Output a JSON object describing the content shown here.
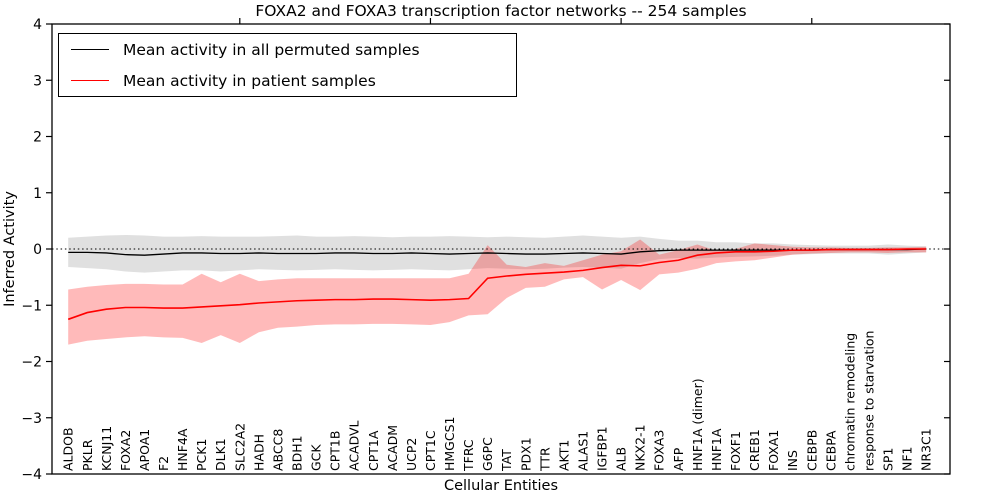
{
  "chart_data": {
    "type": "line",
    "title": "FOXA2 and FOXA3 transcription factor networks -- 254 samples",
    "xlabel": "Cellular Entities",
    "ylabel": "Inferred Activity",
    "ylim": [
      -4,
      4
    ],
    "yticks": [
      4,
      3,
      2,
      1,
      0,
      -1,
      -2,
      -3,
      -4
    ],
    "ytick_labels": [
      "4",
      "3",
      "2",
      "1",
      "0",
      "−1",
      "−2",
      "−3",
      "−4"
    ],
    "x_tick_label_rotation_deg": 90,
    "grid": false,
    "legend_position": "upper left",
    "zero_reference_line": {
      "y": 0,
      "style": "dotted",
      "color": "#000000"
    },
    "top_tick_categories": [
      9,
      19,
      29,
      39
    ],
    "categories": [
      "ALDOB",
      "PKLR",
      "KCNJ11",
      "FOXA2",
      "APOA1",
      "F2",
      "HNF4A",
      "PCK1",
      "DLK1",
      "SLC2A2",
      "HADH",
      "ABCC8",
      "BDH1",
      "GCK",
      "CPT1B",
      "ACADVL",
      "CPT1A",
      "ACADM",
      "UCP2",
      "CPT1C",
      "HMGCS1",
      "TFRC",
      "G6PC",
      "TAT",
      "PDX1",
      "TTR",
      "AKT1",
      "ALAS1",
      "IGFBP1",
      "ALB",
      "NKX2-1",
      "FOXA3",
      "AFP",
      "HNF1A (dimer)",
      "HNF1A",
      "FOXF1",
      "CREB1",
      "FOXA1",
      "INS",
      "CEBPB",
      "CEBPA",
      "chromatin remodeling",
      "response to starvation",
      "SP1",
      "NF1",
      "NR3C1"
    ],
    "series": [
      {
        "name": "Mean activity in all permuted samples",
        "color": "#000000",
        "line_width": 1.3,
        "values": [
          -0.06,
          -0.06,
          -0.07,
          -0.1,
          -0.11,
          -0.09,
          -0.07,
          -0.07,
          -0.08,
          -0.08,
          -0.07,
          -0.08,
          -0.08,
          -0.08,
          -0.07,
          -0.07,
          -0.08,
          -0.08,
          -0.07,
          -0.08,
          -0.09,
          -0.08,
          -0.07,
          -0.08,
          -0.09,
          -0.09,
          -0.08,
          -0.07,
          -0.08,
          -0.09,
          -0.05,
          -0.03,
          -0.02,
          -0.02,
          -0.02,
          -0.02,
          -0.02,
          -0.02,
          -0.02,
          -0.02,
          -0.01,
          -0.01,
          -0.01,
          -0.01,
          -0.01,
          0.0
        ],
        "band": {
          "upper": [
            0.2,
            0.22,
            0.24,
            0.25,
            0.24,
            0.22,
            0.22,
            0.23,
            0.22,
            0.22,
            0.22,
            0.23,
            0.24,
            0.22,
            0.22,
            0.23,
            0.22,
            0.21,
            0.22,
            0.22,
            0.23,
            0.22,
            0.21,
            0.22,
            0.21,
            0.2,
            0.22,
            0.24,
            0.22,
            0.2,
            0.22,
            0.18,
            0.15,
            0.15,
            0.12,
            0.12,
            0.1,
            0.1,
            0.08,
            0.07,
            0.06,
            0.06,
            0.06,
            0.08,
            0.06,
            0.05
          ],
          "lower": [
            -0.32,
            -0.34,
            -0.36,
            -0.4,
            -0.42,
            -0.4,
            -0.38,
            -0.38,
            -0.4,
            -0.38,
            -0.36,
            -0.37,
            -0.38,
            -0.37,
            -0.36,
            -0.37,
            -0.38,
            -0.37,
            -0.36,
            -0.37,
            -0.38,
            -0.36,
            -0.34,
            -0.35,
            -0.36,
            -0.35,
            -0.33,
            -0.32,
            -0.33,
            -0.35,
            -0.25,
            -0.18,
            -0.16,
            -0.17,
            -0.15,
            -0.14,
            -0.13,
            -0.12,
            -0.1,
            -0.09,
            -0.08,
            -0.08,
            -0.08,
            -0.1,
            -0.08,
            -0.06
          ],
          "fill": "#000000",
          "fill_opacity": 0.12
        }
      },
      {
        "name": "Mean activity in patient samples",
        "color": "#ff0000",
        "line_width": 1.6,
        "values": [
          -1.25,
          -1.13,
          -1.07,
          -1.04,
          -1.04,
          -1.05,
          -1.05,
          -1.03,
          -1.01,
          -0.99,
          -0.96,
          -0.94,
          -0.92,
          -0.91,
          -0.9,
          -0.9,
          -0.89,
          -0.89,
          -0.9,
          -0.91,
          -0.9,
          -0.88,
          -0.52,
          -0.48,
          -0.45,
          -0.43,
          -0.41,
          -0.38,
          -0.33,
          -0.29,
          -0.3,
          -0.24,
          -0.2,
          -0.11,
          -0.07,
          -0.05,
          -0.05,
          -0.04,
          -0.02,
          -0.02,
          -0.01,
          -0.01,
          -0.01,
          -0.01,
          0.0,
          0.0
        ],
        "band": {
          "upper": [
            -0.72,
            -0.67,
            -0.64,
            -0.62,
            -0.62,
            -0.63,
            -0.63,
            -0.44,
            -0.59,
            -0.44,
            -0.57,
            -0.54,
            -0.52,
            -0.52,
            -0.52,
            -0.52,
            -0.52,
            -0.52,
            -0.52,
            -0.52,
            -0.52,
            -0.44,
            0.07,
            -0.28,
            -0.32,
            -0.25,
            -0.3,
            -0.2,
            -0.1,
            -0.04,
            0.17,
            -0.1,
            -0.02,
            0.08,
            -0.03,
            0.0,
            0.1,
            0.07,
            0.04,
            0.03,
            0.03,
            0.02,
            0.02,
            0.03,
            0.03,
            0.04
          ],
          "lower": [
            -1.7,
            -1.63,
            -1.6,
            -1.57,
            -1.55,
            -1.57,
            -1.58,
            -1.67,
            -1.53,
            -1.67,
            -1.48,
            -1.4,
            -1.38,
            -1.35,
            -1.34,
            -1.34,
            -1.33,
            -1.33,
            -1.34,
            -1.35,
            -1.3,
            -1.18,
            -1.16,
            -0.87,
            -0.69,
            -0.67,
            -0.54,
            -0.5,
            -0.72,
            -0.55,
            -0.73,
            -0.45,
            -0.42,
            -0.35,
            -0.25,
            -0.22,
            -0.2,
            -0.15,
            -0.1,
            -0.08,
            -0.07,
            -0.06,
            -0.06,
            -0.07,
            -0.06,
            -0.06
          ],
          "fill": "#ff0000",
          "fill_opacity": 0.27
        }
      }
    ]
  }
}
